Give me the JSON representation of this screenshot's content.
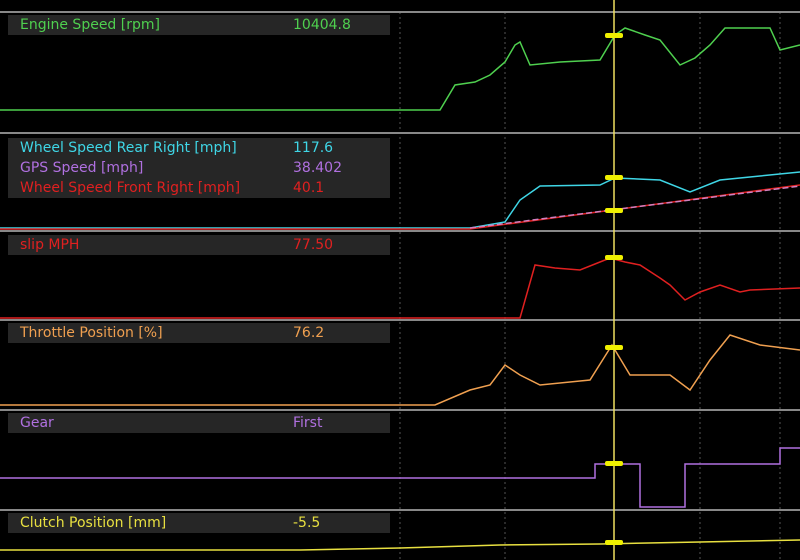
{
  "panels": [
    {
      "channels": [
        {
          "name": "Engine Speed [rpm]",
          "value": "10404.8",
          "color": "#4fd04f"
        }
      ]
    },
    {
      "channels": [
        {
          "name": "Wheel Speed Rear Right [mph]",
          "value": "117.6",
          "color": "#3fd6e6"
        },
        {
          "name": "GPS Speed [mph]",
          "value": "38.402",
          "color": "#b070e0"
        },
        {
          "name": "Wheel Speed Front Right [mph]",
          "value": "40.1",
          "color": "#e02020"
        }
      ]
    },
    {
      "channels": [
        {
          "name": "slip MPH",
          "value": "77.50",
          "color": "#e02020"
        }
      ]
    },
    {
      "channels": [
        {
          "name": "Throttle Position [%]",
          "value": "76.2",
          "color": "#f0a050"
        }
      ]
    },
    {
      "channels": [
        {
          "name": "Gear",
          "value": "First",
          "color": "#b070e0"
        }
      ]
    },
    {
      "channels": [
        {
          "name": "Clutch Position [mm]",
          "value": "-5.5",
          "color": "#e8e040"
        }
      ]
    }
  ]
}
